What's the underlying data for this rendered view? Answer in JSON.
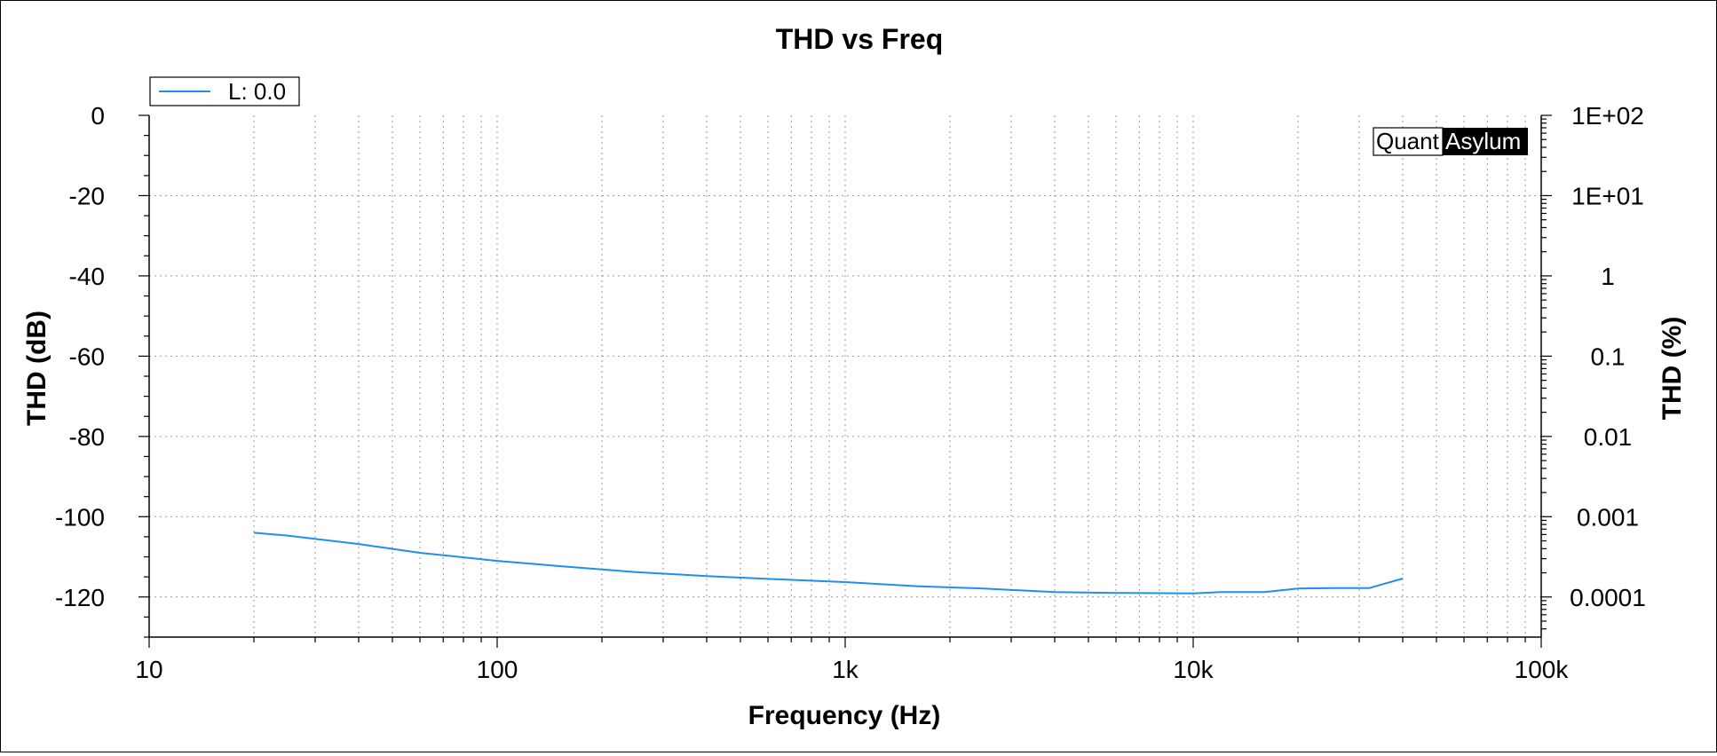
{
  "chart_data": {
    "type": "line",
    "title": "THD vs Freq",
    "xlabel": "Frequency (Hz)",
    "ylabel": "THD (dB)",
    "y2label": "THD (%)",
    "x_scale": "log",
    "xlim": [
      10,
      100000
    ],
    "ylim": [
      -130,
      0
    ],
    "x_ticks": [
      10,
      100,
      1000,
      10000,
      100000
    ],
    "x_tick_labels": [
      "10",
      "100",
      "1k",
      "10k",
      "100k"
    ],
    "y_ticks": [
      0,
      -20,
      -40,
      -60,
      -80,
      -100,
      -120
    ],
    "y_tick_labels": [
      "0",
      "-20",
      "-40",
      "-60",
      "-80",
      "-100",
      "-120"
    ],
    "y2_ticks_db": [
      0,
      -20,
      -40,
      -60,
      -80,
      -100,
      -120
    ],
    "y2_tick_labels": [
      "1E+02",
      "1E+01",
      "1",
      "0.1",
      "0.01",
      "0.001",
      "0.0001"
    ],
    "grid": true,
    "legend_position": "top-left",
    "series": [
      {
        "name": "L: 0.0",
        "color": "#1e8ff0",
        "x": [
          20,
          25,
          40,
          60,
          100,
          160,
          250,
          400,
          600,
          1000,
          1600,
          2500,
          4000,
          6000,
          10000,
          12000,
          16000,
          20000,
          25000,
          32000,
          40000
        ],
        "y": [
          -104,
          -104.7,
          -106.8,
          -109,
          -111,
          -112.5,
          -113.8,
          -114.8,
          -115.5,
          -116.3,
          -117.3,
          -117.9,
          -118.8,
          -119.0,
          -119.1,
          -118.8,
          -118.8,
          -117.9,
          -117.8,
          -117.8,
          -115.4
        ]
      }
    ]
  },
  "watermark": {
    "left": "Quant",
    "right": "Asylum"
  }
}
